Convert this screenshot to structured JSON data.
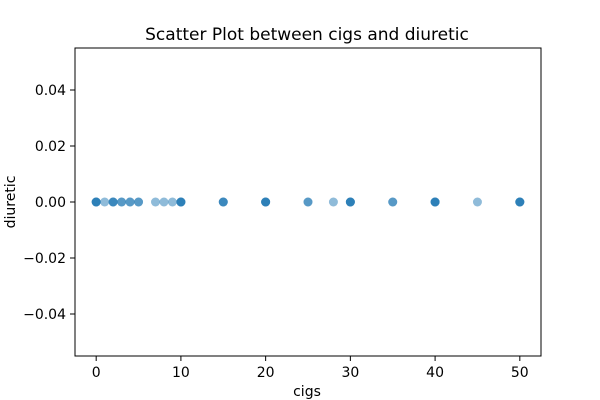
{
  "chart_data": {
    "type": "scatter",
    "title": "Scatter Plot between cigs and diuretic",
    "xlabel": "cigs",
    "ylabel": "diuretic",
    "xlim": [
      -2.5,
      52.5
    ],
    "ylim": [
      -0.055,
      0.055
    ],
    "x_ticks": [
      0,
      10,
      20,
      30,
      40,
      50
    ],
    "x_tick_labels": [
      "0",
      "10",
      "20",
      "30",
      "40",
      "50"
    ],
    "y_ticks": [
      0.04,
      0.02,
      0.0,
      -0.02,
      -0.04
    ],
    "y_tick_labels": [
      "0.04",
      "0.02",
      "0.00",
      "−0.02",
      "−0.04"
    ],
    "grid": false,
    "legend": "none",
    "marker_color": "#1f77b4",
    "marker_alpha": 0.5,
    "points": [
      {
        "x": 0,
        "y": 0
      },
      {
        "x": 0,
        "y": 0
      },
      {
        "x": 0,
        "y": 0
      },
      {
        "x": 0,
        "y": 0
      },
      {
        "x": 1,
        "y": 0
      },
      {
        "x": 2,
        "y": 0
      },
      {
        "x": 2,
        "y": 0
      },
      {
        "x": 2,
        "y": 0
      },
      {
        "x": 3,
        "y": 0
      },
      {
        "x": 3,
        "y": 0
      },
      {
        "x": 4,
        "y": 0
      },
      {
        "x": 4,
        "y": 0
      },
      {
        "x": 5,
        "y": 0
      },
      {
        "x": 5,
        "y": 0
      },
      {
        "x": 7,
        "y": 0
      },
      {
        "x": 8,
        "y": 0
      },
      {
        "x": 9,
        "y": 0
      },
      {
        "x": 10,
        "y": 0
      },
      {
        "x": 10,
        "y": 0
      },
      {
        "x": 10,
        "y": 0
      },
      {
        "x": 10,
        "y": 0
      },
      {
        "x": 15,
        "y": 0
      },
      {
        "x": 15,
        "y": 0
      },
      {
        "x": 15,
        "y": 0
      },
      {
        "x": 20,
        "y": 0
      },
      {
        "x": 20,
        "y": 0
      },
      {
        "x": 20,
        "y": 0
      },
      {
        "x": 20,
        "y": 0
      },
      {
        "x": 25,
        "y": 0
      },
      {
        "x": 25,
        "y": 0
      },
      {
        "x": 28,
        "y": 0
      },
      {
        "x": 30,
        "y": 0
      },
      {
        "x": 30,
        "y": 0
      },
      {
        "x": 30,
        "y": 0
      },
      {
        "x": 30,
        "y": 0
      },
      {
        "x": 35,
        "y": 0
      },
      {
        "x": 35,
        "y": 0
      },
      {
        "x": 40,
        "y": 0
      },
      {
        "x": 40,
        "y": 0
      },
      {
        "x": 40,
        "y": 0
      },
      {
        "x": 40,
        "y": 0
      },
      {
        "x": 45,
        "y": 0
      },
      {
        "x": 50,
        "y": 0
      },
      {
        "x": 50,
        "y": 0
      },
      {
        "x": 50,
        "y": 0
      },
      {
        "x": 50,
        "y": 0
      }
    ]
  }
}
